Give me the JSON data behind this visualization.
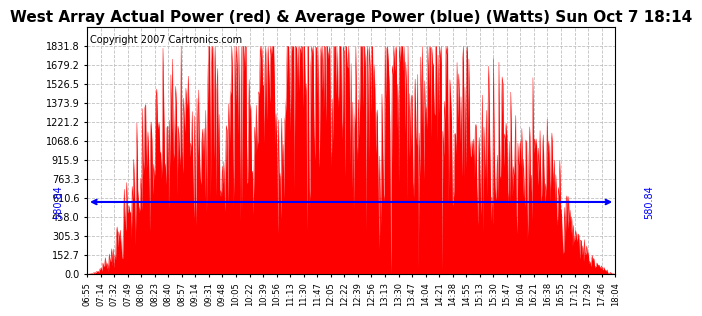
{
  "title": "West Array Actual Power (red) & Average Power (blue) (Watts) Sun Oct 7 18:14",
  "copyright": "Copyright 2007 Cartronics.com",
  "average_power": 580.84,
  "y_ticks": [
    0.0,
    152.7,
    305.3,
    458.0,
    610.6,
    763.3,
    915.9,
    1068.6,
    1221.2,
    1373.9,
    1526.5,
    1679.2,
    1831.8
  ],
  "bar_color": "#FF0000",
  "avg_line_color": "#0000FF",
  "background_color": "#FFFFFF",
  "grid_color": "#C0C0C0",
  "title_fontsize": 11,
  "copyright_fontsize": 7,
  "tick_labels": [
    "06:55",
    "07:14",
    "07:32",
    "07:49",
    "08:06",
    "08:23",
    "08:40",
    "08:57",
    "09:14",
    "09:31",
    "09:48",
    "10:05",
    "10:22",
    "10:39",
    "10:56",
    "11:13",
    "11:30",
    "11:47",
    "12:05",
    "12:22",
    "12:39",
    "12:56",
    "13:13",
    "13:30",
    "13:47",
    "14:04",
    "14:21",
    "14:38",
    "14:55",
    "15:13",
    "15:30",
    "15:47",
    "16:04",
    "16:21",
    "16:38",
    "16:55",
    "17:12",
    "17:29",
    "17:46",
    "18:04"
  ]
}
